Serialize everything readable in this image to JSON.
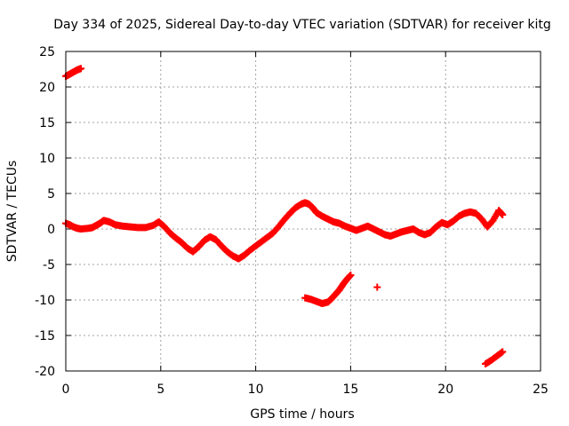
{
  "chart_data": {
    "type": "scatter",
    "title": "Day 334 of 2025, Sidereal Day-to-day VTEC variation (SDTVAR) for receiver kitg",
    "xlabel": "GPS time / hours",
    "ylabel": "SDTVAR / TECUs",
    "xlim": [
      0,
      25
    ],
    "ylim": [
      -20,
      25
    ],
    "xticks": [
      "0",
      "5",
      "10",
      "15",
      "20",
      "25"
    ],
    "yticks": [
      "25",
      "20",
      "15",
      "10",
      "5",
      "0",
      "-5",
      "-10",
      "-15",
      "-20"
    ],
    "xtick_values": [
      0,
      5,
      10,
      15,
      20,
      25
    ],
    "ytick_values": [
      25,
      20,
      15,
      10,
      5,
      0,
      -5,
      -10,
      -15,
      -20
    ],
    "grid": true,
    "marker_color": "#ff0000",
    "marker": "plus",
    "series": [
      {
        "name": "SDTVAR main trace",
        "points": [
          [
            0.0,
            0.8
          ],
          [
            0.2,
            0.6
          ],
          [
            0.4,
            0.3
          ],
          [
            0.6,
            0.1
          ],
          [
            0.8,
            0.0
          ],
          [
            1.2,
            0.1
          ],
          [
            1.4,
            0.2
          ],
          [
            1.6,
            0.5
          ],
          [
            1.8,
            0.8
          ],
          [
            2.0,
            1.2
          ],
          [
            2.3,
            1.0
          ],
          [
            2.6,
            0.6
          ],
          [
            3.0,
            0.4
          ],
          [
            3.4,
            0.3
          ],
          [
            3.8,
            0.2
          ],
          [
            4.2,
            0.2
          ],
          [
            4.6,
            0.5
          ],
          [
            4.9,
            1.0
          ],
          [
            5.2,
            0.3
          ],
          [
            5.5,
            -0.6
          ],
          [
            5.8,
            -1.3
          ],
          [
            6.1,
            -1.9
          ],
          [
            6.4,
            -2.7
          ],
          [
            6.7,
            -3.2
          ],
          [
            7.0,
            -2.5
          ],
          [
            7.3,
            -1.6
          ],
          [
            7.6,
            -1.1
          ],
          [
            7.9,
            -1.5
          ],
          [
            8.2,
            -2.4
          ],
          [
            8.5,
            -3.2
          ],
          [
            8.8,
            -3.8
          ],
          [
            9.1,
            -4.2
          ],
          [
            9.4,
            -3.7
          ],
          [
            9.7,
            -3.0
          ],
          [
            10.0,
            -2.4
          ],
          [
            10.3,
            -1.8
          ],
          [
            10.6,
            -1.2
          ],
          [
            10.9,
            -0.6
          ],
          [
            11.2,
            0.3
          ],
          [
            11.5,
            1.3
          ],
          [
            11.8,
            2.2
          ],
          [
            12.1,
            3.0
          ],
          [
            12.4,
            3.5
          ],
          [
            12.6,
            3.7
          ],
          [
            12.8,
            3.5
          ],
          [
            13.0,
            3.0
          ],
          [
            13.2,
            2.3
          ],
          [
            13.5,
            1.8
          ],
          [
            13.8,
            1.4
          ],
          [
            14.1,
            1.0
          ],
          [
            14.4,
            0.8
          ],
          [
            14.7,
            0.4
          ],
          [
            15.0,
            0.1
          ],
          [
            15.3,
            -0.2
          ],
          [
            15.6,
            0.1
          ],
          [
            15.9,
            0.4
          ],
          [
            16.2,
            0.0
          ],
          [
            16.5,
            -0.4
          ],
          [
            16.8,
            -0.8
          ],
          [
            17.1,
            -1.0
          ],
          [
            17.4,
            -0.7
          ],
          [
            17.7,
            -0.4
          ],
          [
            18.0,
            -0.2
          ],
          [
            18.3,
            0.0
          ],
          [
            18.6,
            -0.5
          ],
          [
            18.9,
            -0.8
          ],
          [
            19.2,
            -0.5
          ],
          [
            19.5,
            0.3
          ],
          [
            19.8,
            0.9
          ],
          [
            20.1,
            0.6
          ],
          [
            20.4,
            1.1
          ],
          [
            20.7,
            1.8
          ],
          [
            21.0,
            2.2
          ],
          [
            21.3,
            2.4
          ],
          [
            21.6,
            2.2
          ],
          [
            21.9,
            1.4
          ],
          [
            22.2,
            0.3
          ],
          [
            22.5,
            1.2
          ],
          [
            22.8,
            2.6
          ],
          [
            23.0,
            2.0
          ]
        ]
      },
      {
        "name": "SDTVAR secondary trace",
        "points": [
          [
            0.0,
            21.5
          ],
          [
            0.2,
            21.8
          ],
          [
            0.4,
            22.1
          ],
          [
            0.6,
            22.4
          ],
          [
            0.8,
            22.6
          ],
          [
            12.6,
            -9.7
          ],
          [
            12.9,
            -9.9
          ],
          [
            13.2,
            -10.2
          ],
          [
            13.5,
            -10.5
          ],
          [
            13.8,
            -10.3
          ],
          [
            14.0,
            -9.8
          ],
          [
            14.2,
            -9.2
          ],
          [
            14.4,
            -8.6
          ],
          [
            14.6,
            -7.8
          ],
          [
            14.8,
            -7.1
          ],
          [
            15.0,
            -6.5
          ],
          [
            16.4,
            -8.2
          ],
          [
            22.1,
            -19.0
          ],
          [
            22.4,
            -18.5
          ],
          [
            22.7,
            -17.9
          ],
          [
            23.0,
            -17.3
          ]
        ]
      }
    ]
  }
}
